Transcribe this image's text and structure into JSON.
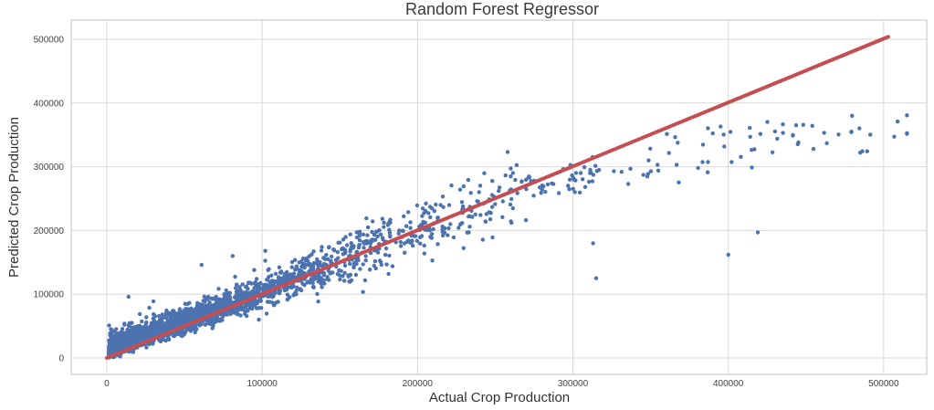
{
  "figure": {
    "kind": "matplotlib-scatter-figure",
    "background": "#ffffff"
  },
  "chart_data": {
    "type": "scatter",
    "title": "Random Forest Regressor",
    "xlabel": "Actual Crop Production",
    "ylabel": "Predicted Crop Production",
    "xlim": [
      -22900,
      527700
    ],
    "ylim": [
      -25800,
      530100
    ],
    "xticks": [
      0,
      100000,
      200000,
      300000,
      400000,
      500000
    ],
    "yticks": [
      0,
      100000,
      200000,
      300000,
      400000,
      500000
    ],
    "xtick_labels": [
      "0",
      "100000",
      "200000",
      "300000",
      "400000",
      "500000"
    ],
    "ytick_labels": [
      "0",
      "100000",
      "200000",
      "300000",
      "400000",
      "500000"
    ],
    "grid": true,
    "legend": null,
    "colors": {
      "points": "#4C72B0",
      "line": "#C44E52",
      "grid": "#D8D8D8",
      "spine": "#CCCCCC",
      "title_text": "#3a3a3a",
      "label_text": "#333333",
      "tick_text": "#424242"
    },
    "identity_line": {
      "x": [
        0,
        503000
      ],
      "y": [
        0,
        504000
      ],
      "width": 4
    },
    "scatter": {
      "marker_radius": 2.2,
      "n_points": 2400,
      "seed": 7,
      "x_distribution": "exponential",
      "x_mean": 80000,
      "x_max": 515000,
      "fit": {
        "slope": 0.98,
        "saturation_start": 270000,
        "saturation_slope": 0.4
      },
      "noise": {
        "base": 2000,
        "proportional": 0.1,
        "plateau_sd": 18000,
        "overshoot_scale": 16000,
        "overshoot_decay": 140000
      },
      "y_min_clamp": 800,
      "plateau_cluster": {
        "n": 30,
        "x_range": [
          360000,
          515000
        ],
        "y_center": 348000,
        "y_sd": 13000,
        "y_max": 380000
      },
      "outliers": [
        [
          258000,
          323000
        ],
        [
          313000,
          180000
        ],
        [
          315000,
          125000
        ],
        [
          400000,
          162000
        ],
        [
          419000,
          197000
        ],
        [
          61000,
          146000
        ],
        [
          81000,
          160000
        ],
        [
          102000,
          168000
        ],
        [
          14000,
          96000
        ],
        [
          30000,
          89000
        ]
      ]
    }
  }
}
